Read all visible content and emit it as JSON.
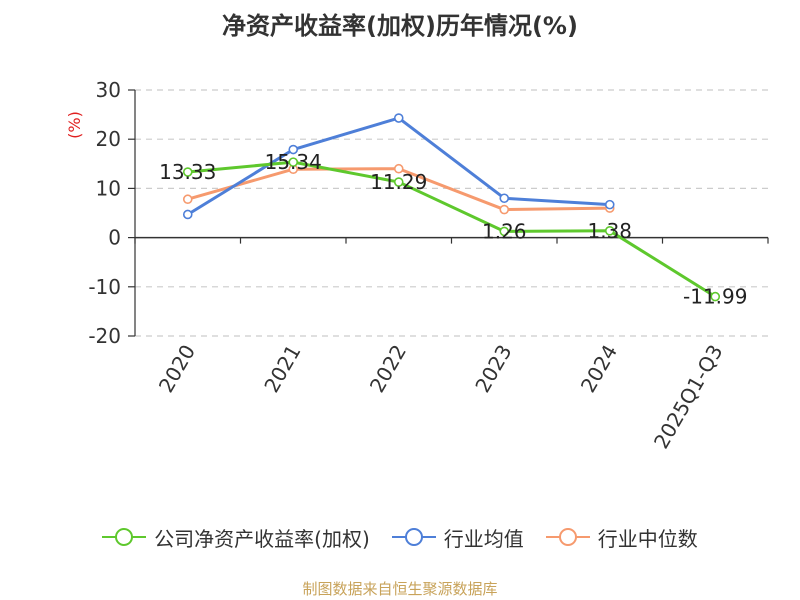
{
  "chart_data": {
    "type": "line",
    "title": "净资产收益率(加权)历年情况(%)",
    "ylabel": "(%)",
    "xlabel": "",
    "categories": [
      "2020",
      "2021",
      "2022",
      "2023",
      "2024",
      "2025Q1-Q3"
    ],
    "ylim": [
      -20,
      30
    ],
    "yticks": [
      30,
      20,
      10,
      0,
      -10,
      -20
    ],
    "grid": true,
    "legend_position": "bottom",
    "series": [
      {
        "name": "公司净资产收益率(加权)",
        "color": "#5ec82d",
        "values": [
          13.33,
          15.34,
          11.29,
          1.26,
          1.38,
          -11.99
        ],
        "labels": [
          "13.33",
          "15.34",
          "11.29",
          "1.26",
          "1.38",
          "-11.99"
        ]
      },
      {
        "name": "行业均值",
        "color": "#4e7fd8",
        "values": [
          4.7,
          17.9,
          24.3,
          8.0,
          6.7,
          null
        ]
      },
      {
        "name": "行业中位数",
        "color": "#f69a6e",
        "values": [
          7.8,
          13.9,
          14.0,
          5.7,
          6.0,
          null
        ]
      }
    ],
    "source": "制图数据来自恒生聚源数据库"
  }
}
